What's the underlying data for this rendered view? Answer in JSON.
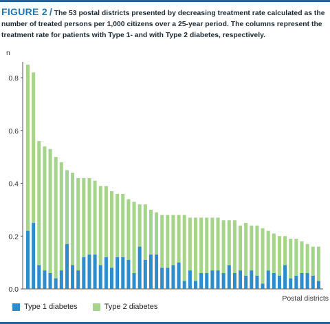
{
  "caption": {
    "figure_label": "FIGURE 2",
    "separator": "/",
    "text": "The 53 postal districts presented by decreasing treatment rate calculated as the number of treated persons per 1,000 citizens over a 25-year period. The columns represent the treatment rate for patients with Type 1- and with Type 2 diabetes, respectively."
  },
  "colors": {
    "type1": "#2e8ccb",
    "type2": "#a6d48a",
    "accent": "#1d77b3"
  },
  "chart_data": {
    "type": "bar",
    "stacked": true,
    "ylabel": "n",
    "xlabel": "Postal districts",
    "ylim": [
      0,
      0.86
    ],
    "yticks": [
      "0.0",
      "0.2",
      "0.4",
      "0.6",
      "0.8"
    ],
    "ytick_values": [
      0,
      0.2,
      0.4,
      0.6,
      0.8
    ],
    "grid": false,
    "legend_position": "bottom-left",
    "series": [
      {
        "name": "Type 1 diabetes",
        "color": "#2e8ccb",
        "values": [
          0.22,
          0.25,
          0.09,
          0.07,
          0.06,
          0.04,
          0.07,
          0.17,
          0.09,
          0.07,
          0.12,
          0.13,
          0.13,
          0.09,
          0.12,
          0.08,
          0.12,
          0.12,
          0.11,
          0.06,
          0.16,
          0.11,
          0.13,
          0.13,
          0.08,
          0.08,
          0.09,
          0.1,
          0.03,
          0.07,
          0.03,
          0.06,
          0.06,
          0.07,
          0.07,
          0.06,
          0.09,
          0.06,
          0.07,
          0.05,
          0.07,
          0.05,
          0.02,
          0.07,
          0.06,
          0.05,
          0.09,
          0.04,
          0.05,
          0.06,
          0.06,
          0.05,
          0.03
        ]
      },
      {
        "name": "Type 2 diabetes",
        "color": "#a6d48a",
        "totals": [
          0.85,
          0.82,
          0.56,
          0.54,
          0.53,
          0.5,
          0.48,
          0.45,
          0.44,
          0.42,
          0.42,
          0.42,
          0.41,
          0.39,
          0.39,
          0.37,
          0.36,
          0.36,
          0.34,
          0.33,
          0.32,
          0.32,
          0.3,
          0.29,
          0.28,
          0.28,
          0.28,
          0.28,
          0.28,
          0.27,
          0.27,
          0.27,
          0.27,
          0.27,
          0.27,
          0.26,
          0.26,
          0.26,
          0.24,
          0.25,
          0.24,
          0.24,
          0.23,
          0.22,
          0.21,
          0.2,
          0.2,
          0.19,
          0.19,
          0.18,
          0.17,
          0.16,
          0.16
        ]
      }
    ]
  }
}
